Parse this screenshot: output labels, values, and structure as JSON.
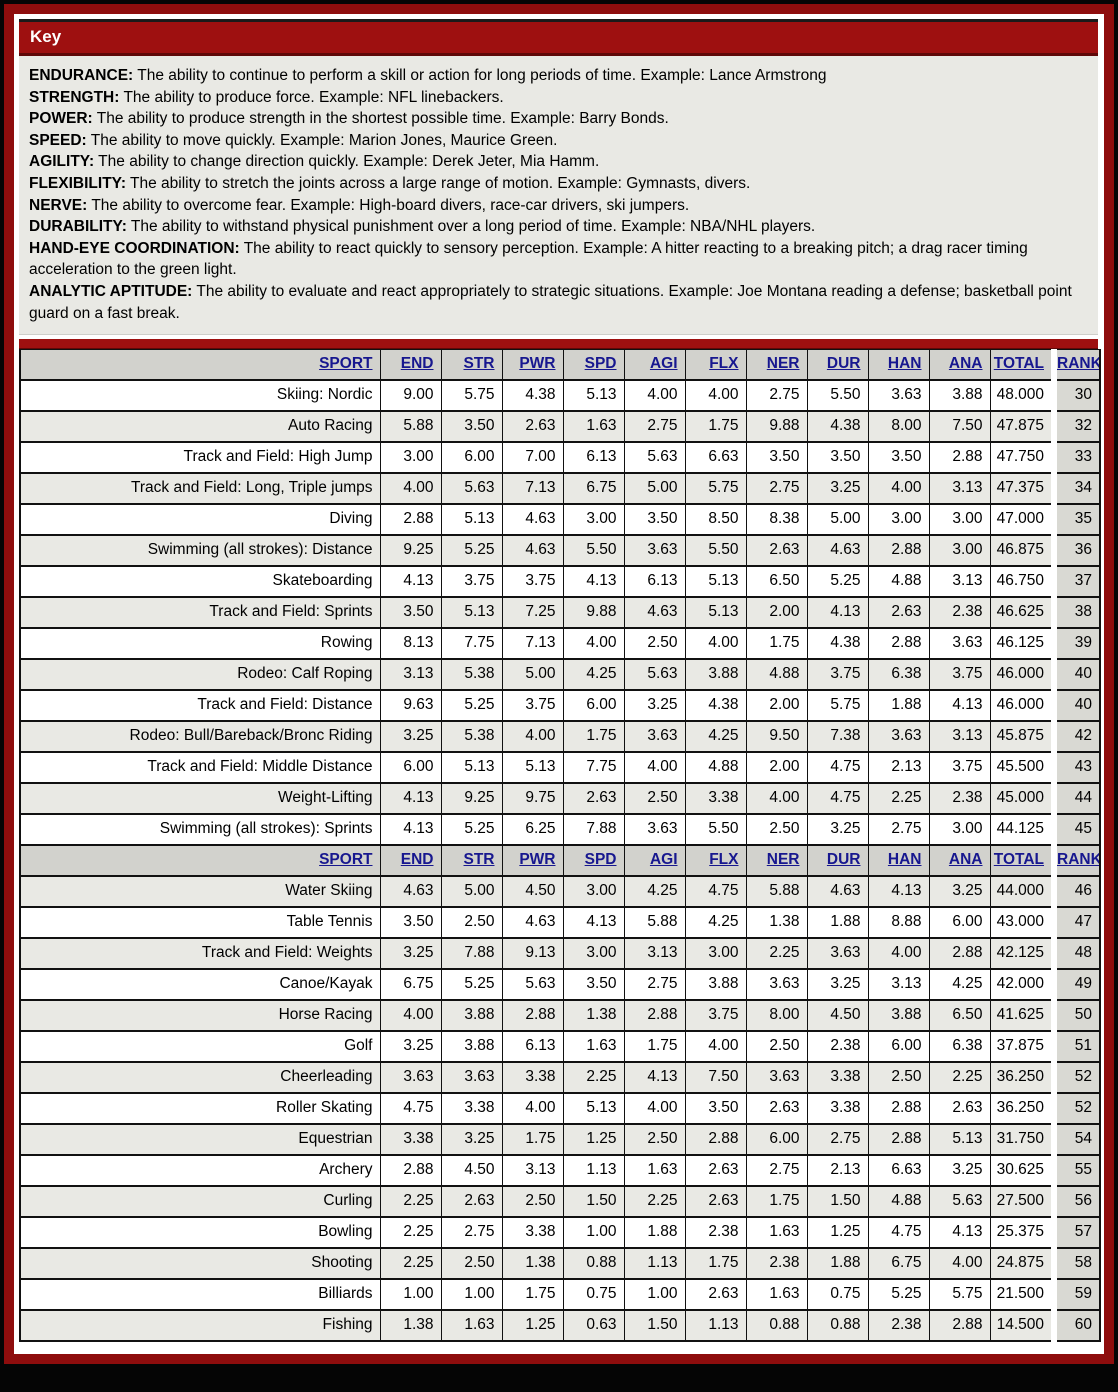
{
  "key": {
    "title": "Key",
    "definitions": [
      {
        "term": "ENDURANCE",
        "text": "The ability to continue to perform a skill or action for long periods of time. Example: Lance Armstrong"
      },
      {
        "term": "STRENGTH",
        "text": "The ability to produce force. Example: NFL linebackers."
      },
      {
        "term": "POWER",
        "text": "The ability to produce strength in the shortest possible time. Example: Barry Bonds."
      },
      {
        "term": "SPEED",
        "text": "The ability to move quickly. Example: Marion Jones, Maurice Green."
      },
      {
        "term": "AGILITY",
        "text": "The ability to change direction quickly. Example: Derek Jeter, Mia Hamm."
      },
      {
        "term": "FLEXIBILITY",
        "text": "The ability to stretch the joints across a large range of motion. Example: Gymnasts, divers."
      },
      {
        "term": "NERVE",
        "text": "The ability to overcome fear. Example: High-board divers, race-car drivers, ski jumpers."
      },
      {
        "term": "DURABILITY",
        "text": "The ability to withstand physical punishment over a long period of time. Example: NBA/NHL players."
      },
      {
        "term": "HAND-EYE COORDINATION",
        "text": "The ability to react quickly to sensory perception. Example: A hitter reacting to a breaking pitch; a drag racer timing acceleration to the green light."
      },
      {
        "term": "ANALYTIC APTITUDE",
        "text": "The ability to evaluate and react appropriately to strategic situations. Example: Joe Montana reading a defense; basketball point guard on a fast break."
      }
    ]
  },
  "table": {
    "columns": [
      "SPORT",
      "END",
      "STR",
      "PWR",
      "SPD",
      "AGI",
      "FLX",
      "NER",
      "DUR",
      "HAN",
      "ANA",
      "TOTAL",
      "RANK"
    ],
    "sections": [
      {
        "first_row_shade": "light",
        "rows": [
          {
            "sport": "Skiing: Nordic",
            "values": [
              "9.00",
              "5.75",
              "4.38",
              "5.13",
              "4.00",
              "4.00",
              "2.75",
              "5.50",
              "3.63",
              "3.88"
            ],
            "total": "48.000",
            "rank": "30"
          },
          {
            "sport": "Auto Racing",
            "values": [
              "5.88",
              "3.50",
              "2.63",
              "1.63",
              "2.75",
              "1.75",
              "9.88",
              "4.38",
              "8.00",
              "7.50"
            ],
            "total": "47.875",
            "rank": "32"
          },
          {
            "sport": "Track and Field: High Jump",
            "values": [
              "3.00",
              "6.00",
              "7.00",
              "6.13",
              "5.63",
              "6.63",
              "3.50",
              "3.50",
              "3.50",
              "2.88"
            ],
            "total": "47.750",
            "rank": "33"
          },
          {
            "sport": "Track and Field: Long, Triple jumps",
            "values": [
              "4.00",
              "5.63",
              "7.13",
              "6.75",
              "5.00",
              "5.75",
              "2.75",
              "3.25",
              "4.00",
              "3.13"
            ],
            "total": "47.375",
            "rank": "34"
          },
          {
            "sport": "Diving",
            "values": [
              "2.88",
              "5.13",
              "4.63",
              "3.00",
              "3.50",
              "8.50",
              "8.38",
              "5.00",
              "3.00",
              "3.00"
            ],
            "total": "47.000",
            "rank": "35"
          },
          {
            "sport": "Swimming (all strokes): Distance",
            "values": [
              "9.25",
              "5.25",
              "4.63",
              "5.50",
              "3.63",
              "5.50",
              "2.63",
              "4.63",
              "2.88",
              "3.00"
            ],
            "total": "46.875",
            "rank": "36"
          },
          {
            "sport": "Skateboarding",
            "values": [
              "4.13",
              "3.75",
              "3.75",
              "4.13",
              "6.13",
              "5.13",
              "6.50",
              "5.25",
              "4.88",
              "3.13"
            ],
            "total": "46.750",
            "rank": "37"
          },
          {
            "sport": "Track and Field: Sprints",
            "values": [
              "3.50",
              "5.13",
              "7.25",
              "9.88",
              "4.63",
              "5.13",
              "2.00",
              "4.13",
              "2.63",
              "2.38"
            ],
            "total": "46.625",
            "rank": "38"
          },
          {
            "sport": "Rowing",
            "values": [
              "8.13",
              "7.75",
              "7.13",
              "4.00",
              "2.50",
              "4.00",
              "1.75",
              "4.38",
              "2.88",
              "3.63"
            ],
            "total": "46.125",
            "rank": "39"
          },
          {
            "sport": "Rodeo: Calf Roping",
            "values": [
              "3.13",
              "5.38",
              "5.00",
              "4.25",
              "5.63",
              "3.88",
              "4.88",
              "3.75",
              "6.38",
              "3.75"
            ],
            "total": "46.000",
            "rank": "40"
          },
          {
            "sport": "Track and Field: Distance",
            "values": [
              "9.63",
              "5.25",
              "3.75",
              "6.00",
              "3.25",
              "4.38",
              "2.00",
              "5.75",
              "1.88",
              "4.13"
            ],
            "total": "46.000",
            "rank": "40"
          },
          {
            "sport": "Rodeo: Bull/Bareback/Bronc Riding",
            "values": [
              "3.25",
              "5.38",
              "4.00",
              "1.75",
              "3.63",
              "4.25",
              "9.50",
              "7.38",
              "3.63",
              "3.13"
            ],
            "total": "45.875",
            "rank": "42"
          },
          {
            "sport": "Track and Field: Middle Distance",
            "values": [
              "6.00",
              "5.13",
              "5.13",
              "7.75",
              "4.00",
              "4.88",
              "2.00",
              "4.75",
              "2.13",
              "3.75"
            ],
            "total": "45.500",
            "rank": "43"
          },
          {
            "sport": "Weight-Lifting",
            "values": [
              "4.13",
              "9.25",
              "9.75",
              "2.63",
              "2.50",
              "3.38",
              "4.00",
              "4.75",
              "2.25",
              "2.38"
            ],
            "total": "45.000",
            "rank": "44"
          },
          {
            "sport": "Swimming (all strokes): Sprints",
            "values": [
              "4.13",
              "5.25",
              "6.25",
              "7.88",
              "3.63",
              "5.50",
              "2.50",
              "3.25",
              "2.75",
              "3.00"
            ],
            "total": "44.125",
            "rank": "45"
          }
        ]
      },
      {
        "first_row_shade": "dark",
        "rows": [
          {
            "sport": "Water Skiing",
            "values": [
              "4.63",
              "5.00",
              "4.50",
              "3.00",
              "4.25",
              "4.75",
              "5.88",
              "4.63",
              "4.13",
              "3.25"
            ],
            "total": "44.000",
            "rank": "46"
          },
          {
            "sport": "Table Tennis",
            "values": [
              "3.50",
              "2.50",
              "4.63",
              "4.13",
              "5.88",
              "4.25",
              "1.38",
              "1.88",
              "8.88",
              "6.00"
            ],
            "total": "43.000",
            "rank": "47"
          },
          {
            "sport": "Track and Field: Weights",
            "values": [
              "3.25",
              "7.88",
              "9.13",
              "3.00",
              "3.13",
              "3.00",
              "2.25",
              "3.63",
              "4.00",
              "2.88"
            ],
            "total": "42.125",
            "rank": "48"
          },
          {
            "sport": "Canoe/Kayak",
            "values": [
              "6.75",
              "5.25",
              "5.63",
              "3.50",
              "2.75",
              "3.88",
              "3.63",
              "3.25",
              "3.13",
              "4.25"
            ],
            "total": "42.000",
            "rank": "49"
          },
          {
            "sport": "Horse Racing",
            "values": [
              "4.00",
              "3.88",
              "2.88",
              "1.38",
              "2.88",
              "3.75",
              "8.00",
              "4.50",
              "3.88",
              "6.50"
            ],
            "total": "41.625",
            "rank": "50"
          },
          {
            "sport": "Golf",
            "values": [
              "3.25",
              "3.88",
              "6.13",
              "1.63",
              "1.75",
              "4.00",
              "2.50",
              "2.38",
              "6.00",
              "6.38"
            ],
            "total": "37.875",
            "rank": "51"
          },
          {
            "sport": "Cheerleading",
            "values": [
              "3.63",
              "3.63",
              "3.38",
              "2.25",
              "4.13",
              "7.50",
              "3.63",
              "3.38",
              "2.50",
              "2.25"
            ],
            "total": "36.250",
            "rank": "52"
          },
          {
            "sport": "Roller Skating",
            "values": [
              "4.75",
              "3.38",
              "4.00",
              "5.13",
              "4.00",
              "3.50",
              "2.63",
              "3.38",
              "2.88",
              "2.63"
            ],
            "total": "36.250",
            "rank": "52"
          },
          {
            "sport": "Equestrian",
            "values": [
              "3.38",
              "3.25",
              "1.75",
              "1.25",
              "2.50",
              "2.88",
              "6.00",
              "2.75",
              "2.88",
              "5.13"
            ],
            "total": "31.750",
            "rank": "54"
          },
          {
            "sport": "Archery",
            "values": [
              "2.88",
              "4.50",
              "3.13",
              "1.13",
              "1.63",
              "2.63",
              "2.75",
              "2.13",
              "6.63",
              "3.25"
            ],
            "total": "30.625",
            "rank": "55"
          },
          {
            "sport": "Curling",
            "values": [
              "2.25",
              "2.63",
              "2.50",
              "1.50",
              "2.25",
              "2.63",
              "1.75",
              "1.50",
              "4.88",
              "5.63"
            ],
            "total": "27.500",
            "rank": "56"
          },
          {
            "sport": "Bowling",
            "values": [
              "2.25",
              "2.75",
              "3.38",
              "1.00",
              "1.88",
              "2.38",
              "1.63",
              "1.25",
              "4.75",
              "4.13"
            ],
            "total": "25.375",
            "rank": "57"
          },
          {
            "sport": "Shooting",
            "values": [
              "2.25",
              "2.50",
              "1.38",
              "0.88",
              "1.13",
              "1.75",
              "2.38",
              "1.88",
              "6.75",
              "4.00"
            ],
            "total": "24.875",
            "rank": "58"
          },
          {
            "sport": "Billiards",
            "values": [
              "1.00",
              "1.00",
              "1.75",
              "0.75",
              "1.00",
              "2.63",
              "1.63",
              "0.75",
              "5.25",
              "5.75"
            ],
            "total": "21.500",
            "rank": "59"
          },
          {
            "sport": "Fishing",
            "values": [
              "1.38",
              "1.63",
              "1.25",
              "0.63",
              "1.50",
              "1.13",
              "0.88",
              "0.88",
              "2.38",
              "2.88"
            ],
            "total": "14.500",
            "rank": "60"
          }
        ]
      }
    ]
  },
  "colors": {
    "accent_red": "#9e1010",
    "frame_red": "#8e0d0d",
    "header_link_blue": "#17178f",
    "row_shade_gray": "#e9e9e4",
    "rank_column_gray": "#d9d9d3",
    "header_row_gray": "#d2d2cd"
  }
}
